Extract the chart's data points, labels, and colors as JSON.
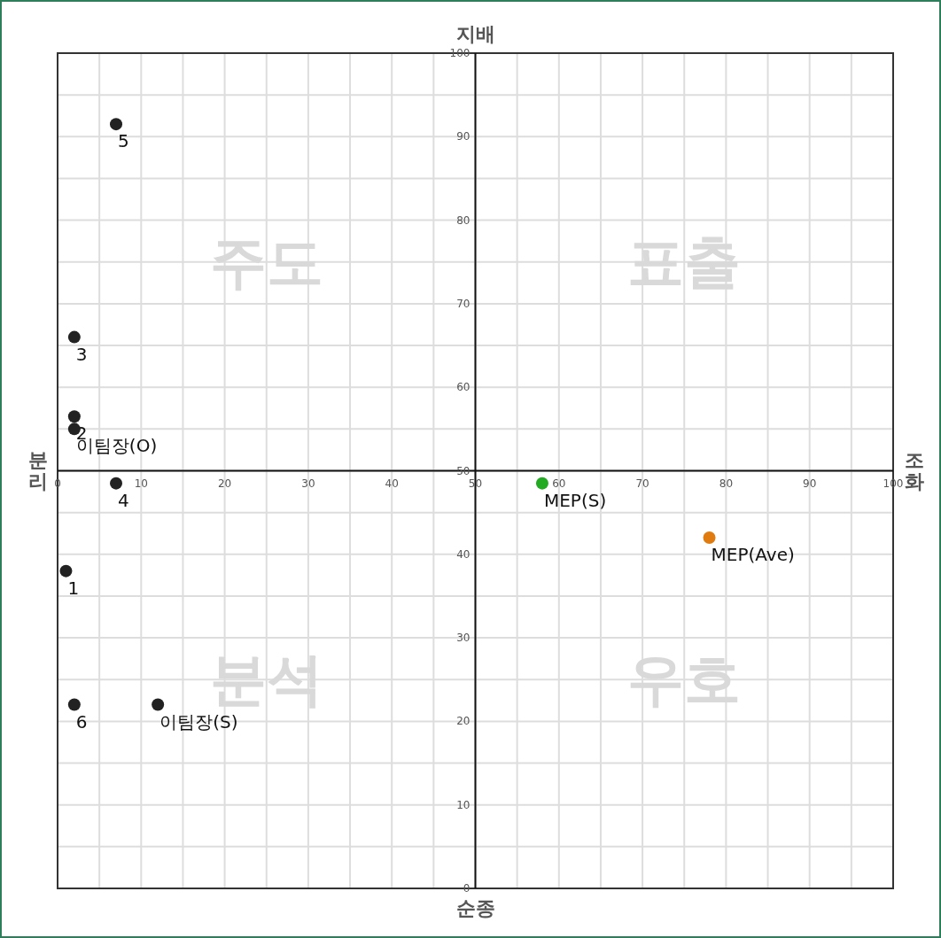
{
  "chart_data": {
    "type": "scatter",
    "xlim": [
      0,
      100
    ],
    "ylim": [
      0,
      100
    ],
    "xticks": [
      0,
      {
        "value": 5,
        "label": null
      },
      10,
      {
        "value": 15,
        "label": null
      },
      20,
      {
        "value": 25,
        "label": null
      },
      30,
      {
        "value": 35,
        "label": null
      },
      40,
      {
        "value": 45,
        "label": null
      },
      50,
      {
        "value": 55,
        "label": null
      },
      60,
      {
        "value": 65,
        "label": null
      },
      70,
      {
        "value": 75,
        "label": null
      },
      80,
      {
        "value": 85,
        "label": null
      },
      90,
      {
        "value": 95,
        "label": null
      },
      100
    ],
    "yticks": [
      0,
      {
        "value": 5,
        "label": null
      },
      10,
      {
        "value": 15,
        "label": null
      },
      20,
      {
        "value": 25,
        "label": null
      },
      30,
      {
        "value": 35,
        "label": null
      },
      40,
      {
        "value": 45,
        "label": null
      },
      50,
      {
        "value": 55,
        "label": null
      },
      60,
      {
        "value": 65,
        "label": null
      },
      70,
      {
        "value": 75,
        "label": null
      },
      80,
      {
        "value": 85,
        "label": null
      },
      90,
      {
        "value": 95,
        "label": null
      },
      100
    ],
    "grid": true,
    "marker": "circle",
    "annotations": [
      "지배",
      "순종",
      "분리",
      "조화",
      "주도",
      "표출",
      "분석",
      "우호"
    ],
    "series": [
      {
        "name": "5",
        "color": "#222222",
        "x": [
          7
        ],
        "values": [
          91.5
        ]
      },
      {
        "name": "3",
        "color": "#222222",
        "x": [
          2
        ],
        "values": [
          66
        ]
      },
      {
        "name": "2",
        "color": "#222222",
        "x": [
          2
        ],
        "values": [
          56.5
        ]
      },
      {
        "name": "이팀장(O)",
        "color": "#222222",
        "x": [
          2
        ],
        "values": [
          55
        ]
      },
      {
        "name": "4",
        "color": "#222222",
        "x": [
          7
        ],
        "values": [
          48.5
        ]
      },
      {
        "name": "1",
        "color": "#222222",
        "x": [
          1
        ],
        "values": [
          38
        ]
      },
      {
        "name": "6",
        "color": "#222222",
        "x": [
          2
        ],
        "values": [
          22
        ]
      },
      {
        "name": "이팀장(S)",
        "color": "#222222",
        "x": [
          12
        ],
        "values": [
          22
        ]
      },
      {
        "name": "MEP(S)",
        "color": "#22aa22",
        "x": [
          58
        ],
        "values": [
          48.5
        ]
      },
      {
        "name": "MEP(Ave)",
        "color": "#e07b10",
        "x": [
          78
        ],
        "values": [
          42
        ]
      }
    ]
  }
}
